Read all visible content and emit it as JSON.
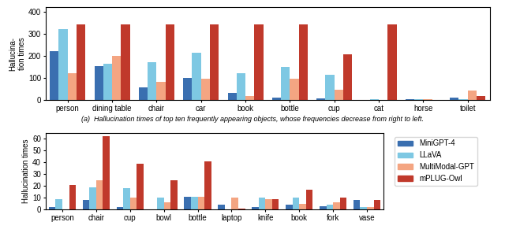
{
  "chart_data": [
    {
      "type": "bar",
      "categories": [
        "person",
        "dining table",
        "chair",
        "car",
        "book",
        "bottle",
        "cup",
        "cat",
        "horse",
        "toilet"
      ],
      "series": [
        {
          "name": "MiniGPT-4",
          "color": "#3a6fb0",
          "values": [
            220,
            155,
            58,
            100,
            32,
            10,
            8,
            2,
            3,
            10
          ]
        },
        {
          "name": "LLaVA",
          "color": "#7ec8e3",
          "values": [
            320,
            165,
            170,
            215,
            120,
            150,
            115,
            3,
            4,
            3
          ]
        },
        {
          "name": "MultiModal-GPT",
          "color": "#f4a582",
          "values": [
            120,
            200,
            82,
            95,
            18,
            95,
            48,
            2,
            5,
            42
          ]
        },
        {
          "name": "mPLUG-Owl",
          "color": "#c0392b",
          "values": [
            340,
            340,
            340,
            340,
            340,
            340,
            205,
            340,
            2,
            20
          ]
        }
      ],
      "y_label": "Hallucina-\ntion times",
      "ylim": [
        0,
        420
      ],
      "yticks": [
        0,
        100,
        200,
        300,
        400
      ],
      "annotations": [
        "(a)  Hallucination times of top ten frequently appearing objects, whose frequencies decrease from right to left."
      ]
    },
    {
      "type": "bar",
      "categories": [
        "person",
        "chair",
        "cup",
        "bowl",
        "bottle",
        "laptop",
        "knife",
        "book",
        "fork",
        "vase"
      ],
      "series": [
        {
          "name": "MiniGPT-4",
          "color": "#3a6fb0",
          "values": [
            2,
            8,
            2,
            0,
            11,
            4,
            2,
            4,
            3,
            8
          ]
        },
        {
          "name": "LLaVA",
          "color": "#7ec8e3",
          "values": [
            9,
            19,
            18,
            10,
            11,
            0,
            10,
            10,
            4,
            2
          ]
        },
        {
          "name": "MultiModal-GPT",
          "color": "#f4a582",
          "values": [
            0,
            25,
            10,
            6,
            11,
            10,
            9,
            5,
            6,
            2
          ]
        },
        {
          "name": "mPLUG-Owl",
          "color": "#c0392b",
          "values": [
            21,
            62,
            39,
            25,
            41,
            1,
            9,
            17,
            10,
            8
          ]
        }
      ],
      "y_label": "Hallucination times",
      "ylim": [
        0,
        65
      ],
      "yticks": [
        0,
        10,
        20,
        30,
        40,
        50,
        60
      ],
      "legend": "upper left"
    }
  ]
}
